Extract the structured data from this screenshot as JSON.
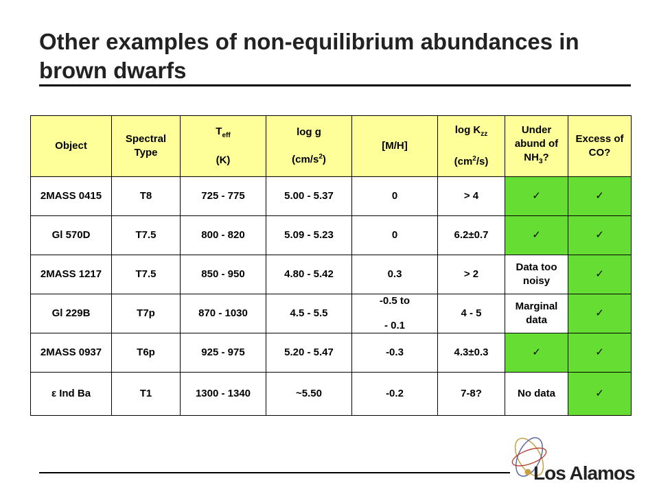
{
  "title": "Other examples of non-equilibrium abundances in brown dwarfs",
  "headers": {
    "object": "Object",
    "spectral_type": "Spectral Type",
    "teff_main": "T",
    "teff_sub": "eff",
    "teff_unit": "(K)",
    "logg_main": "log g",
    "logg_unit_prefix": "(cm/s",
    "logg_unit_sup": "2",
    "logg_unit_suffix": ")",
    "mh": "[M/H]",
    "logk_main": "log K",
    "logk_sub": "zz",
    "logk_unit_prefix": "(cm",
    "logk_unit_sup": "2",
    "logk_unit_suffix": "/s)",
    "nh3_prefix": "Under abund of NH",
    "nh3_sub": "3",
    "nh3_suffix": "?",
    "co": "Excess of CO?"
  },
  "rows": [
    {
      "object": "2MASS 0415",
      "type": "T8",
      "teff": "725 - 775",
      "logg": "5.00 - 5.37",
      "mh": "0",
      "logk": "> 4",
      "nh3": "✓",
      "co": "✓"
    },
    {
      "object": "Gl 570D",
      "type": "T7.5",
      "teff": "800 - 820",
      "logg": "5.09 - 5.23",
      "mh": "0",
      "logk": "6.2±0.7",
      "nh3": "✓",
      "co": "✓"
    },
    {
      "object": "2MASS 1217",
      "type": "T7.5",
      "teff": "850 - 950",
      "logg": "4.80 - 5.42",
      "mh": "0.3",
      "logk": "> 2",
      "nh3": "Data too noisy",
      "co": "✓"
    },
    {
      "object": "Gl 229B",
      "type": "T7p",
      "teff": "870 - 1030",
      "logg": "4.5 - 5.5",
      "mh_line1": "-0.5 to",
      "mh_line2": "- 0.1",
      "logk": "4 - 5",
      "nh3": "Marginal data",
      "co": "✓"
    },
    {
      "object": "2MASS 0937",
      "type": "T6p",
      "teff": "925 - 975",
      "logg": "5.20 - 5.47",
      "mh": "-0.3",
      "logk": "4.3±0.3",
      "nh3": "✓",
      "co": "✓"
    },
    {
      "object": "ε Ind Ba",
      "type": "T1",
      "teff": "1300 - 1340",
      "logg": "~5.50",
      "mh": "-0.2",
      "logk": "7-8?",
      "nh3": "No data",
      "co": "✓"
    }
  ],
  "logo": {
    "text": "Los Alamos"
  },
  "colors": {
    "header_bg": "#ffff99",
    "check_bg": "#66dd33"
  }
}
